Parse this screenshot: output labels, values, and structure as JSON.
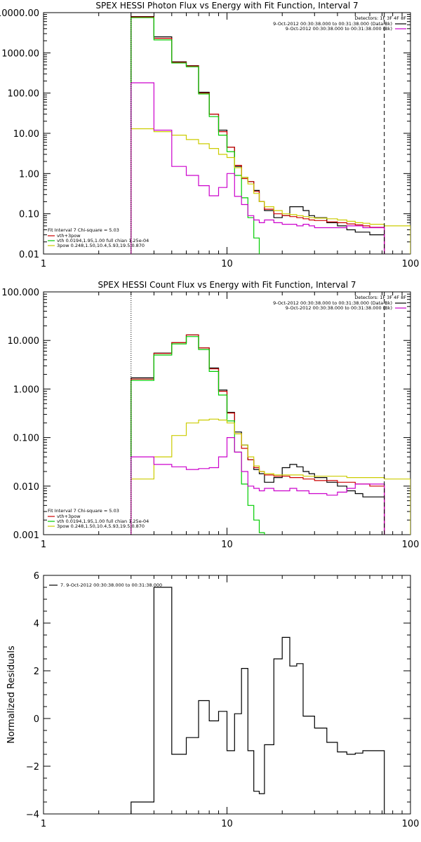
{
  "chart_data": [
    {
      "type": "line",
      "title": "SPEX HESSI Photon Flux vs Energy with Fit Function, Interval 7",
      "xlabel": "",
      "ylabel": "",
      "xscale": "log",
      "yscale": "log",
      "xlim": [
        1,
        100
      ],
      "ylim": [
        0.01,
        10000
      ],
      "x_ticks": [
        {
          "value": 1,
          "label": "1"
        },
        {
          "value": 10,
          "label": "10"
        },
        {
          "value": 100,
          "label": "100"
        }
      ],
      "y_ticks": [
        {
          "value": 0.01,
          "label": "0.01"
        },
        {
          "value": 0.1,
          "label": "0.10"
        },
        {
          "value": 1,
          "label": "1.00"
        },
        {
          "value": 10,
          "label": "10.00"
        },
        {
          "value": 100,
          "label": "100.00"
        },
        {
          "value": 1000,
          "label": "1000.00"
        },
        {
          "value": 10000,
          "label": "10000.00"
        }
      ],
      "vlines": [
        {
          "x": 3.0,
          "style": "dotted",
          "color": "#000000"
        },
        {
          "x": 72,
          "style": "dashed",
          "color": "#000000"
        }
      ],
      "legend_top": {
        "position": "top-right",
        "title": "Detectors: 1F 3F 4F 8F",
        "entries": [
          {
            "label": "9-Oct-2012 00:30:38.000 to 00:31:38.000 (Data-Bk)",
            "color": "#000000"
          },
          {
            "label": "9-Oct-2012 00:30:38.000 to 00:31:38.000 (Bk)",
            "color": "#cc00cc"
          }
        ]
      },
      "legend_bottom": {
        "position": "bottom-left",
        "title": "Fit Interval  7   Chi-square = 5.03",
        "entries": [
          {
            "label": "vth+3pow",
            "color": "#cc0000"
          },
          {
            "label": "vth 0.0194,1.95,1.00  full chian 1.25e-04",
            "color": "#00cc00"
          },
          {
            "label": "3pow 0.248,1.50,10.4,5.93,19.5,0.870",
            "color": "#cccc00"
          }
        ]
      },
      "series": [
        {
          "name": "9-Oct-2012 00:30:38.000 to 00:31:38.000 (Data-Bk)",
          "color": "#000000",
          "step": true,
          "edges": [
            3,
            4,
            5,
            6,
            7,
            8,
            9,
            10,
            11,
            12,
            13,
            14,
            15,
            16,
            18,
            20,
            22,
            24,
            26,
            28,
            30,
            35,
            40,
            45,
            50,
            55,
            60,
            72
          ],
          "values": [
            8000,
            2500,
            600,
            480,
            105,
            30,
            12,
            4.5,
            1.5,
            0.8,
            0.63,
            0.38,
            0.2,
            0.12,
            0.08,
            0.09,
            0.15,
            0.15,
            0.12,
            0.09,
            0.08,
            0.06,
            0.05,
            0.04,
            0.035,
            0.035,
            0.03
          ]
        },
        {
          "name": "vth+3pow",
          "color": "#cc0000",
          "step": true,
          "edges": [
            3,
            4,
            5,
            6,
            7,
            8,
            9,
            10,
            11,
            12,
            13,
            14,
            15,
            16,
            18,
            20,
            22,
            24,
            26,
            28,
            30,
            35,
            40,
            45,
            50,
            55,
            60,
            72
          ],
          "values": [
            7800,
            2300,
            580,
            470,
            100,
            30,
            11,
            4.5,
            1.6,
            0.75,
            0.63,
            0.36,
            0.2,
            0.13,
            0.1,
            0.09,
            0.085,
            0.08,
            0.075,
            0.07,
            0.068,
            0.063,
            0.06,
            0.056,
            0.053,
            0.05,
            0.046
          ]
        },
        {
          "name": "vth 0.0194,1.95,1.00  full chian 1.25e-04",
          "color": "#00cc00",
          "step": true,
          "edges": [
            3,
            4,
            5,
            6,
            7,
            8,
            9,
            10,
            11,
            12,
            13,
            14,
            15
          ],
          "values": [
            7500,
            2100,
            560,
            450,
            95,
            26,
            9,
            3.5,
            0.9,
            0.25,
            0.08,
            0.025
          ]
        },
        {
          "name": "3pow 0.248,1.50,10.4,5.93,19.5,0.870",
          "color": "#cccc00",
          "step": true,
          "edges": [
            3,
            4,
            5,
            6,
            7,
            8,
            9,
            10,
            11,
            12,
            13,
            14,
            15,
            16,
            18,
            20,
            22,
            24,
            26,
            28,
            30,
            35,
            40,
            45,
            50,
            55,
            60,
            72,
            100
          ],
          "values": [
            13,
            11,
            9,
            7,
            5.5,
            4.2,
            3,
            2.5,
            1.4,
            0.8,
            0.55,
            0.32,
            0.2,
            0.15,
            0.12,
            0.1,
            0.095,
            0.09,
            0.085,
            0.08,
            0.078,
            0.075,
            0.07,
            0.065,
            0.06,
            0.058,
            0.055,
            0.05
          ]
        },
        {
          "name": "9-Oct-2012 00:30:38.000 to 00:31:38.000 (Bk)",
          "color": "#cc00cc",
          "step": true,
          "edges": [
            3,
            4,
            5,
            6,
            7,
            8,
            9,
            10,
            11,
            12,
            13,
            14,
            15,
            16,
            18,
            20,
            22,
            24,
            26,
            28,
            30,
            35,
            40,
            45,
            50,
            55,
            60,
            72
          ],
          "values": [
            180,
            12,
            1.5,
            0.9,
            0.5,
            0.28,
            0.45,
            1.0,
            0.27,
            0.17,
            0.09,
            0.07,
            0.06,
            0.07,
            0.06,
            0.055,
            0.055,
            0.05,
            0.055,
            0.05,
            0.045,
            0.045,
            0.045,
            0.05,
            0.05,
            0.045,
            0.045
          ]
        }
      ]
    },
    {
      "type": "line",
      "title": "SPEX HESSI Count Flux vs Energy with Fit Function, Interval 7",
      "xlabel": "",
      "ylabel": "",
      "xscale": "log",
      "yscale": "log",
      "xlim": [
        1,
        100
      ],
      "ylim": [
        0.001,
        100
      ],
      "x_ticks": [
        {
          "value": 1,
          "label": "1"
        },
        {
          "value": 10,
          "label": "10"
        },
        {
          "value": 100,
          "label": "100"
        }
      ],
      "y_ticks": [
        {
          "value": 0.001,
          "label": "0.001"
        },
        {
          "value": 0.01,
          "label": "0.010"
        },
        {
          "value": 0.1,
          "label": "0.100"
        },
        {
          "value": 1,
          "label": "1.000"
        },
        {
          "value": 10,
          "label": "10.000"
        },
        {
          "value": 100,
          "label": "100.000"
        }
      ],
      "vlines": [
        {
          "x": 3.0,
          "style": "dotted",
          "color": "#000000"
        },
        {
          "x": 72,
          "style": "dashed",
          "color": "#000000"
        }
      ],
      "legend_top": {
        "position": "top-right",
        "title": "Detectors: 1F 3F 4F 8F",
        "entries": [
          {
            "label": "9-Oct-2012 00:30:38.000 to 00:31:38.000 (Data-Bk)",
            "color": "#000000"
          },
          {
            "label": "9-Oct-2012 00:30:38.000 to 00:31:38.000 (Bk)",
            "color": "#cc00cc"
          }
        ]
      },
      "legend_bottom": {
        "position": "bottom-left",
        "title": "Fit Interval  7   Chi-square = 5.03",
        "entries": [
          {
            "label": "vth+3pow",
            "color": "#cc0000"
          },
          {
            "label": "vth 0.0194,1.95,1.00  full chian 1.25e-04",
            "color": "#00cc00"
          },
          {
            "label": "3pow 0.248,1.50,10.4,5.93,19.5,0.870",
            "color": "#cccc00"
          }
        ]
      },
      "series": [
        {
          "name": "9-Oct-2012 00:30:38.000 to 00:31:38.000 (Data-Bk)",
          "color": "#000000",
          "step": true,
          "edges": [
            3,
            4,
            5,
            6,
            7,
            8,
            9,
            10,
            11,
            12,
            13,
            14,
            15,
            16,
            18,
            20,
            22,
            24,
            26,
            28,
            30,
            35,
            40,
            45,
            50,
            55,
            60,
            72
          ],
          "values": [
            1.7,
            5.5,
            9,
            13,
            7,
            2.7,
            0.95,
            0.33,
            0.13,
            0.07,
            0.035,
            0.022,
            0.018,
            0.012,
            0.015,
            0.024,
            0.028,
            0.025,
            0.02,
            0.018,
            0.015,
            0.012,
            0.01,
            0.008,
            0.007,
            0.006,
            0.006
          ]
        },
        {
          "name": "vth+3pow",
          "color": "#cc0000",
          "step": true,
          "edges": [
            3,
            4,
            5,
            6,
            7,
            8,
            9,
            10,
            11,
            12,
            13,
            14,
            15,
            16,
            18,
            20,
            22,
            24,
            26,
            28,
            30,
            35,
            40,
            45,
            50,
            55,
            60,
            72
          ],
          "values": [
            1.6,
            5.4,
            9,
            13,
            7,
            2.6,
            0.9,
            0.32,
            0.12,
            0.06,
            0.035,
            0.024,
            0.02,
            0.017,
            0.016,
            0.016,
            0.015,
            0.015,
            0.014,
            0.014,
            0.013,
            0.013,
            0.012,
            0.012,
            0.011,
            0.011,
            0.01
          ]
        },
        {
          "name": "vth 0.0194,1.95,1.00  full chian 1.25e-04",
          "color": "#00cc00",
          "step": true,
          "edges": [
            3,
            4,
            5,
            6,
            7,
            8,
            9,
            10,
            11,
            12,
            13,
            14,
            15,
            16
          ],
          "values": [
            1.5,
            5,
            8.5,
            12,
            6.5,
            2.3,
            0.75,
            0.22,
            0.05,
            0.011,
            0.004,
            0.002,
            0.0011
          ]
        },
        {
          "name": "3pow 0.248,1.50,10.4,5.93,19.5,0.870",
          "color": "#cccc00",
          "step": true,
          "edges": [
            3,
            4,
            5,
            6,
            7,
            8,
            9,
            10,
            11,
            12,
            13,
            14,
            15,
            16,
            18,
            20,
            22,
            24,
            26,
            28,
            30,
            35,
            40,
            45,
            50,
            55,
            60,
            72,
            100
          ],
          "values": [
            0.014,
            0.04,
            0.11,
            0.2,
            0.23,
            0.24,
            0.23,
            0.2,
            0.12,
            0.07,
            0.04,
            0.026,
            0.02,
            0.018,
            0.017,
            0.017,
            0.017,
            0.017,
            0.016,
            0.016,
            0.016,
            0.016,
            0.016,
            0.015,
            0.015,
            0.015,
            0.015,
            0.014
          ]
        },
        {
          "name": "9-Oct-2012 00:30:38.000 to 00:31:38.000 (Bk)",
          "color": "#cc00cc",
          "step": true,
          "edges": [
            3,
            4,
            5,
            6,
            7,
            8,
            9,
            10,
            11,
            12,
            13,
            14,
            15,
            16,
            18,
            20,
            22,
            24,
            26,
            28,
            30,
            35,
            40,
            45,
            50,
            55,
            60,
            72
          ],
          "values": [
            0.04,
            0.028,
            0.025,
            0.022,
            0.023,
            0.024,
            0.04,
            0.1,
            0.05,
            0.02,
            0.01,
            0.009,
            0.008,
            0.009,
            0.008,
            0.008,
            0.009,
            0.008,
            0.008,
            0.007,
            0.007,
            0.0065,
            0.0075,
            0.009,
            0.011,
            0.011,
            0.011
          ]
        }
      ]
    },
    {
      "type": "line",
      "title": "",
      "xlabel": "",
      "ylabel": "Normalized Residuals",
      "xscale": "log",
      "yscale": "linear",
      "xlim": [
        1,
        100
      ],
      "ylim": [
        -4,
        6
      ],
      "x_ticks": [
        {
          "value": 1,
          "label": "1"
        },
        {
          "value": 10,
          "label": "10"
        },
        {
          "value": 100,
          "label": "100"
        }
      ],
      "y_ticks": [
        {
          "value": -4,
          "label": "−4"
        },
        {
          "value": -2,
          "label": "−2"
        },
        {
          "value": 0,
          "label": "0"
        },
        {
          "value": 2,
          "label": "2"
        },
        {
          "value": 4,
          "label": "4"
        },
        {
          "value": 6,
          "label": "6"
        }
      ],
      "legend": {
        "position": "top-left",
        "entries": [
          {
            "label": "7.  9-Oct-2012 00:30:38.000 to 00:31:38.000",
            "color": "#000000"
          }
        ]
      },
      "series": [
        {
          "name": "7.  9-Oct-2012 00:30:38.000 to 00:31:38.000",
          "color": "#000000",
          "step": true,
          "edges": [
            3,
            4,
            5,
            6,
            7,
            8,
            9,
            10,
            11,
            12,
            13,
            14,
            15,
            16,
            18,
            20,
            22,
            24,
            26,
            28,
            30,
            35,
            40,
            45,
            50,
            55,
            60,
            72
          ],
          "values": [
            -3.5,
            5.5,
            -1.5,
            -0.8,
            0.75,
            -0.1,
            0.3,
            -1.35,
            0.2,
            2.1,
            -1.35,
            -3.05,
            -3.15,
            -1.1,
            2.5,
            3.4,
            2.2,
            2.3,
            0.1,
            0.1,
            -0.4,
            -1.0,
            -1.4,
            -1.5,
            -1.45,
            -1.35,
            -1.35
          ]
        }
      ]
    }
  ]
}
